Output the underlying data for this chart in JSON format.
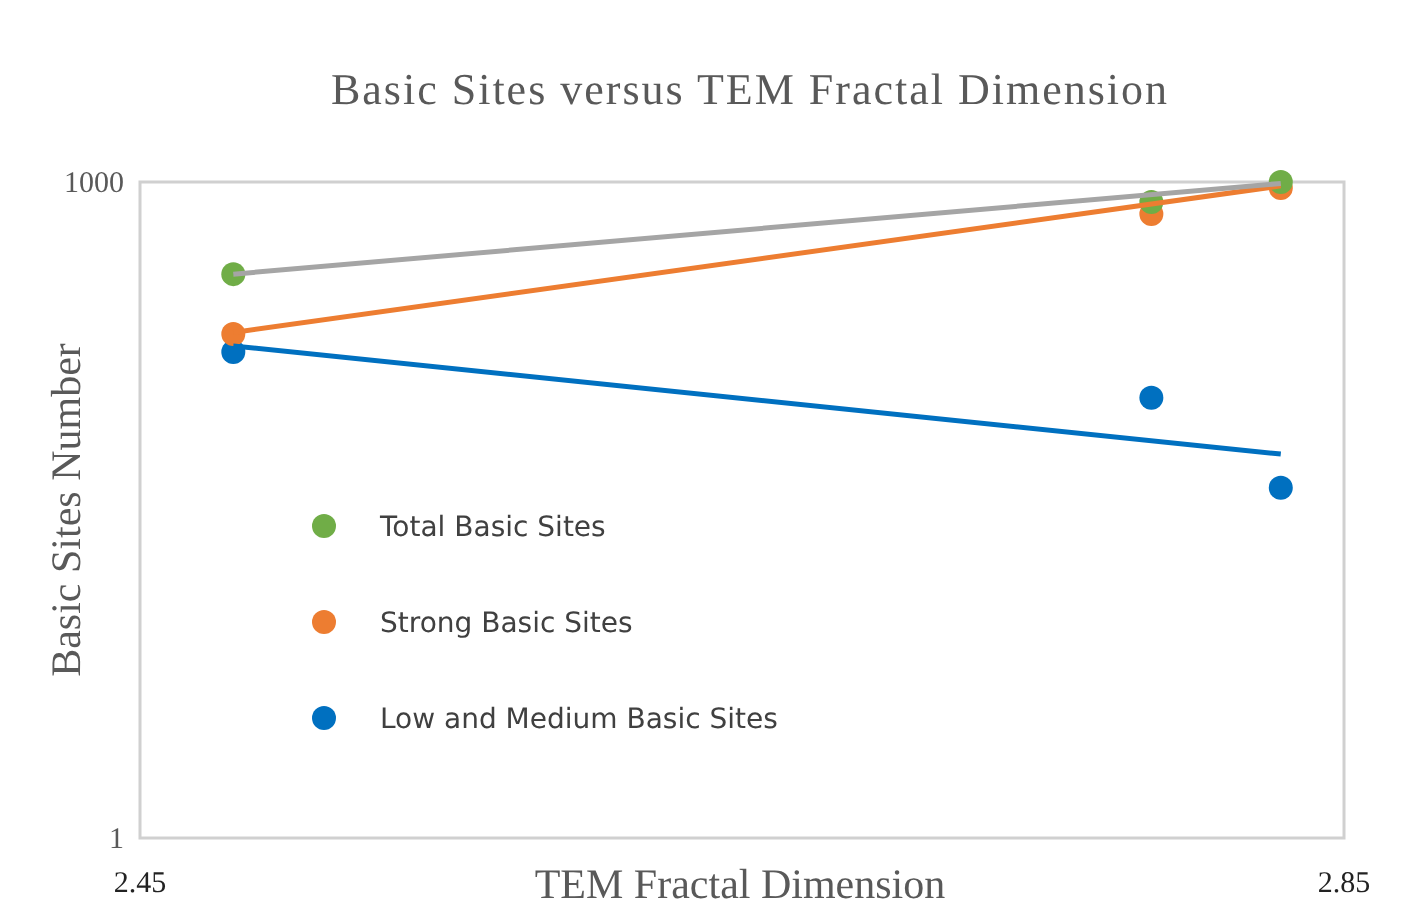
{
  "chart_data": {
    "type": "scatter",
    "title": "Basic Sites versus TEM Fractal Dimension",
    "xlabel": "TEM Fractal Dimension",
    "ylabel": "Basic Sites Number",
    "log": "y",
    "xlim": [
      2.45,
      2.85
    ],
    "ylim": [
      1,
      1000
    ],
    "xticks": [
      2.45,
      2.85
    ],
    "yticks": [
      1,
      1000
    ],
    "grid": false,
    "legend": "left",
    "marker": "circle",
    "series": [
      {
        "name": "Total Basic Sites",
        "color": "#70ad47",
        "x": [
          2.481,
          2.786,
          2.829
        ],
        "values": [
          379,
          811,
          1000
        ]
      },
      {
        "name": "Strong Basic Sites",
        "color": "#ed7d31",
        "x": [
          2.481,
          2.786,
          2.829
        ],
        "values": [
          202,
          714,
          939
        ]
      },
      {
        "name": "Low and Medium Basic Sites",
        "color": "#0070c0",
        "x": [
          2.481,
          2.786,
          2.829
        ],
        "values": [
          167,
          103,
          40
        ]
      },
      {
        "type": "line",
        "marker": "none",
        "color": "#a5a5a5",
        "x": [
          2.481,
          2.829
        ],
        "values": [
          379,
          985
        ]
      },
      {
        "type": "line",
        "marker": "none",
        "color": "#ed7d31",
        "x": [
          2.481,
          2.829
        ],
        "values": [
          205,
          960
        ]
      },
      {
        "type": "line",
        "marker": "none",
        "color": "#0070c0",
        "x": [
          2.481,
          2.829
        ],
        "values": [
          178,
          57
        ]
      }
    ]
  }
}
